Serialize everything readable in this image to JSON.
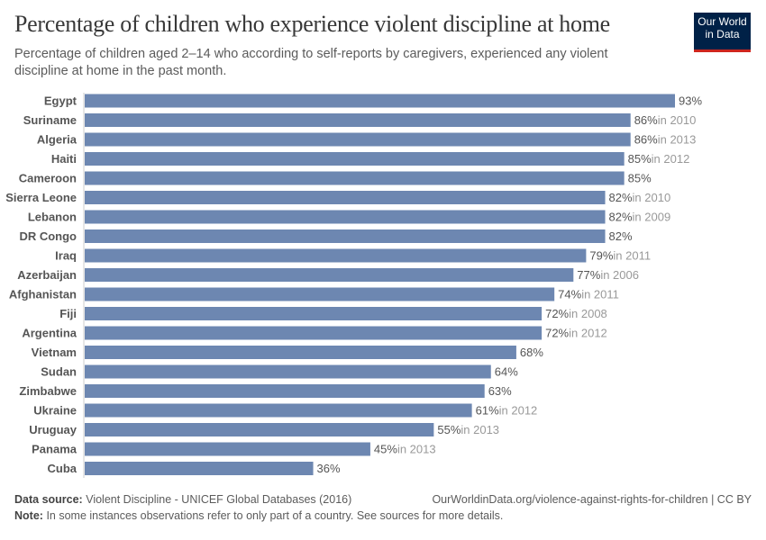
{
  "header": {
    "title": "Percentage of children who experience violent discipline at home",
    "subtitle": "Percentage of children aged 2–14 who according to self-reports by caregivers, experienced any violent discipline at home in the past month.",
    "logo": "Our World in Data"
  },
  "chart_data": {
    "type": "bar",
    "orientation": "horizontal",
    "xlim": [
      0,
      93
    ],
    "grid": false,
    "bar_color": "#6d87b1",
    "categories": [
      "Egypt",
      "Suriname",
      "Algeria",
      "Haiti",
      "Cameroon",
      "Sierra Leone",
      "Lebanon",
      "DR Congo",
      "Iraq",
      "Azerbaijan",
      "Afghanistan",
      "Fiji",
      "Argentina",
      "Vietnam",
      "Sudan",
      "Zimbabwe",
      "Ukraine",
      "Uruguay",
      "Panama",
      "Cuba"
    ],
    "values": [
      93,
      86,
      86,
      85,
      85,
      82,
      82,
      82,
      79,
      77,
      74,
      72,
      72,
      68,
      64,
      63,
      61,
      55,
      45,
      36
    ],
    "value_labels": [
      "93%",
      "86%",
      "86%",
      "85%",
      "85%",
      "82%",
      "82%",
      "82%",
      "79%",
      "77%",
      "74%",
      "72%",
      "72%",
      "68%",
      "64%",
      "63%",
      "61%",
      "55%",
      "45%",
      "36%"
    ],
    "year_notes": [
      "",
      "in 2010",
      "in 2013",
      "in 2012",
      "",
      "in 2010",
      "in 2009",
      "",
      "in 2011",
      "in 2006",
      "in 2011",
      "in 2008",
      "in 2012",
      "",
      "",
      "",
      "in 2012",
      "in 2013",
      "in 2013",
      ""
    ]
  },
  "footer": {
    "source_label": "Data source:",
    "source": "Violent Discipline - UNICEF Global Databases (2016)",
    "url": "OurWorldinData.org/violence-against-rights-for-children | CC BY",
    "note_label": "Note:",
    "note": "In some instances observations refer to only part of a country. See sources for more details."
  }
}
